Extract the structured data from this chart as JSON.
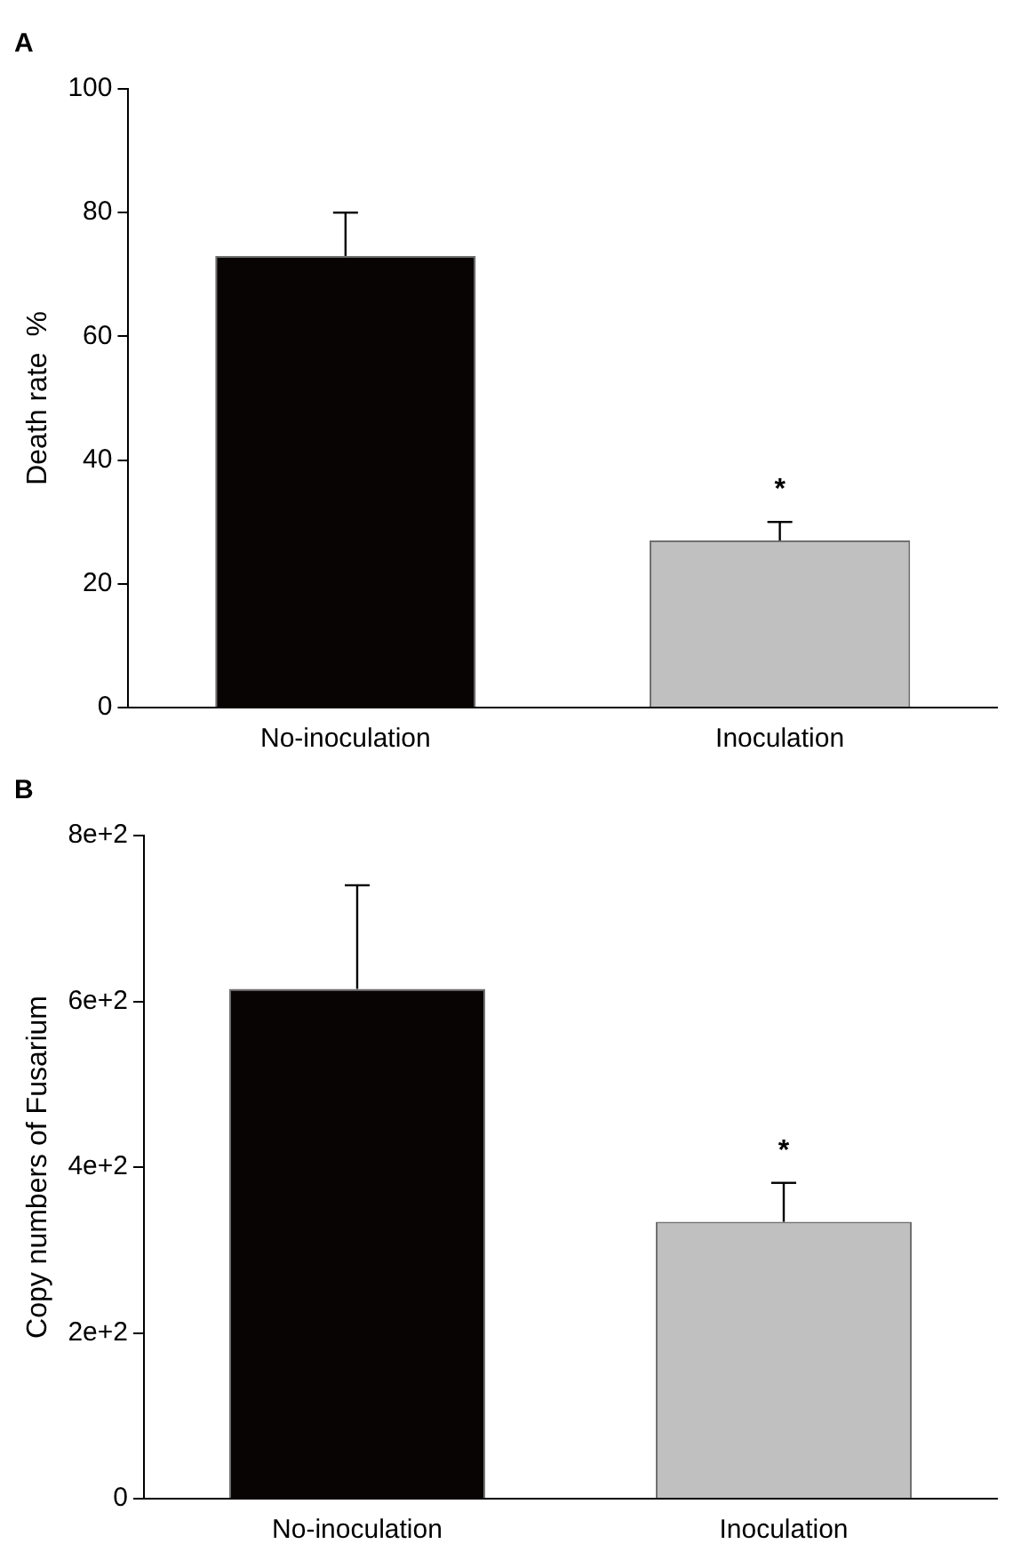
{
  "chart_data": [
    {
      "type": "bar",
      "title": "A",
      "ylabel": "Death rate  %",
      "categories": [
        "No-inoculation",
        "Inoculation"
      ],
      "values": [
        73,
        27
      ],
      "colors": [
        "#080404",
        "#c0c0c0"
      ],
      "errors": [
        [
          73,
          80
        ],
        [
          27,
          30
        ]
      ],
      "ylim": [
        0,
        100
      ],
      "yticks": [
        0,
        20,
        40,
        60,
        80,
        100
      ],
      "grid": false,
      "legend": false,
      "annotations": [
        "*"
      ]
    },
    {
      "type": "bar",
      "title": "B",
      "ylabel": "Copy numbers of Fusarium",
      "categories": [
        "No-inoculation",
        "Inoculation"
      ],
      "values": [
        615,
        334
      ],
      "colors": [
        "#080404",
        "#c0c0c0"
      ],
      "errors": [
        [
          615,
          740
        ],
        [
          334,
          381
        ]
      ],
      "ylim": [
        0,
        800
      ],
      "yticks": [
        0,
        {
          "value": 200,
          "label": "2e+2"
        },
        {
          "value": 400,
          "label": "4e+2"
        },
        {
          "value": 600,
          "label": "6e+2"
        },
        {
          "value": 800,
          "label": "8e+2"
        }
      ],
      "grid": false,
      "legend": false,
      "annotations": [
        "*"
      ]
    }
  ]
}
